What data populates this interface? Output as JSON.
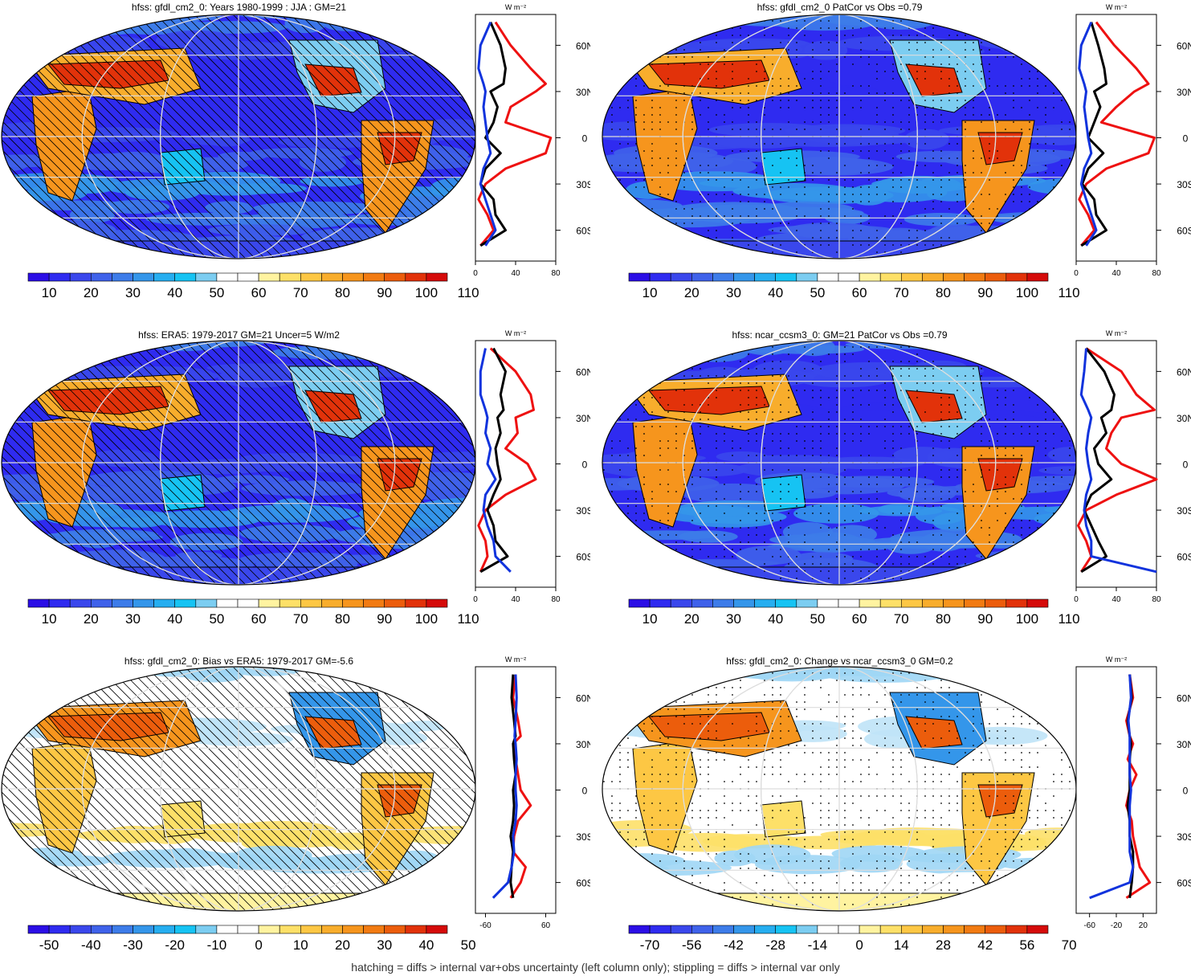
{
  "footer": "hatching = diffs > internal var+obs uncertainty (left column only); stippling = diffs > internal var only",
  "profile_unit": "W m⁻²",
  "lat_labels": [
    "60N",
    "30N",
    "0",
    "30S",
    "60S"
  ],
  "lat_values": [
    60,
    30,
    0,
    -30,
    -60
  ],
  "colors": {
    "sequential": [
      "#2b0ee6",
      "#2f2bf0",
      "#3a47ec",
      "#3f62ea",
      "#3d7ce9",
      "#3496ea",
      "#26aef0",
      "#16c3f3",
      "#7ccdf1",
      "#ffffff",
      "#ffffff",
      "#fff3a0",
      "#fde068",
      "#fdc744",
      "#f8ad2c",
      "#f6951d",
      "#f27b12",
      "#ec5d0c",
      "#e2320a",
      "#d50b0a"
    ],
    "diverging": [
      "#2b0ee6",
      "#2f2bf0",
      "#3a47ec",
      "#3f62ea",
      "#3d7ce9",
      "#3496ea",
      "#26aef0",
      "#16c3f3",
      "#7ccdf1",
      "#ffffff",
      "#ffffff",
      "#fff3a0",
      "#fde068",
      "#fdc744",
      "#f8ad2c",
      "#f6951d",
      "#f27b12",
      "#ec5d0c",
      "#e2320a",
      "#d50b0a"
    ],
    "profile_red": "#ee1111",
    "profile_blue": "#1133dd",
    "profile_black": "#000000"
  },
  "chart_data": [
    {
      "type": "heatmap",
      "title": "hfss: gfdl_cm2_0: Years 1980-1999 : JJA : GM=21",
      "colorbar_labels": [
        "10",
        "20",
        "30",
        "40",
        "50",
        "60",
        "70",
        "80",
        "90",
        "100",
        "110"
      ],
      "overlay": "hatching",
      "profile": {
        "xticks": [
          "0",
          "40",
          "80"
        ],
        "xlim": [
          0,
          80
        ],
        "lat": [
          75,
          60,
          45,
          35,
          30,
          20,
          10,
          0,
          -10,
          -20,
          -30,
          -40,
          -50,
          -60,
          -70
        ],
        "series": [
          {
            "color": "red",
            "values": [
              20,
              35,
              55,
              70,
              60,
              35,
              30,
              75,
              70,
              30,
              10,
              3,
              12,
              18,
              5
            ]
          },
          {
            "color": "black",
            "values": [
              15,
              25,
              30,
              28,
              15,
              22,
              18,
              10,
              25,
              10,
              5,
              18,
              20,
              30,
              5
            ]
          },
          {
            "color": "blue",
            "values": [
              15,
              5,
              3,
              8,
              10,
              8,
              10,
              12,
              15,
              8,
              5,
              10,
              15,
              20,
              10
            ]
          }
        ]
      }
    },
    {
      "type": "heatmap",
      "title": "hfss: gfdl_cm2_0 PatCor vs Obs =0.79",
      "colorbar_labels": [
        "10",
        "20",
        "30",
        "40",
        "50",
        "60",
        "70",
        "80",
        "90",
        "100",
        "110"
      ],
      "overlay": "stippling",
      "profile": {
        "xticks": [
          "0",
          "40",
          "80"
        ],
        "xlim": [
          0,
          80
        ],
        "lat": [
          75,
          60,
          45,
          35,
          30,
          20,
          10,
          0,
          -10,
          -20,
          -30,
          -40,
          -50,
          -60,
          -70
        ],
        "series": [
          {
            "color": "red",
            "values": [
              20,
              38,
              60,
              72,
              58,
              40,
              25,
              78,
              72,
              30,
              10,
              3,
              12,
              18,
              5
            ]
          },
          {
            "color": "black",
            "values": [
              15,
              22,
              28,
              30,
              18,
              24,
              18,
              12,
              27,
              12,
              6,
              18,
              20,
              30,
              5
            ]
          },
          {
            "color": "blue",
            "values": [
              15,
              5,
              3,
              8,
              10,
              8,
              10,
              12,
              15,
              8,
              5,
              10,
              15,
              20,
              10
            ]
          }
        ]
      }
    },
    {
      "type": "heatmap",
      "title": "hfss: ERA5: 1979-2017 GM=21 Uncer=5 W/m2",
      "colorbar_labels": [
        "10",
        "20",
        "30",
        "40",
        "50",
        "60",
        "70",
        "80",
        "90",
        "100",
        "110"
      ],
      "overlay": "hatching",
      "profile": {
        "xticks": [
          "0",
          "40",
          "80"
        ],
        "xlim": [
          0,
          80
        ],
        "lat": [
          75,
          60,
          45,
          35,
          30,
          20,
          10,
          0,
          -10,
          -20,
          -30,
          -40,
          -50,
          -60,
          -70
        ],
        "series": [
          {
            "color": "red",
            "values": [
              15,
              40,
              55,
              58,
              40,
              42,
              30,
              52,
              60,
              30,
              10,
              3,
              10,
              12,
              5
            ]
          },
          {
            "color": "black",
            "values": [
              18,
              30,
              25,
              28,
              22,
              25,
              20,
              22,
              25,
              18,
              12,
              18,
              20,
              32,
              5
            ]
          },
          {
            "color": "blue",
            "values": [
              10,
              5,
              5,
              10,
              12,
              10,
              15,
              12,
              20,
              10,
              8,
              12,
              18,
              20,
              35
            ]
          }
        ]
      }
    },
    {
      "type": "heatmap",
      "title": "hfss: ncar_ccsm3_0: GM=21 PatCor vs Obs =0.79",
      "colorbar_labels": [
        "10",
        "20",
        "30",
        "40",
        "50",
        "60",
        "70",
        "80",
        "90",
        "100",
        "110"
      ],
      "overlay": "stippling",
      "profile": {
        "xticks": [
          "0",
          "40",
          "80"
        ],
        "xlim": [
          0,
          80
        ],
        "lat": [
          75,
          60,
          45,
          35,
          30,
          20,
          10,
          0,
          -10,
          -20,
          -30,
          -40,
          -50,
          -60,
          -70
        ],
        "series": [
          {
            "color": "red",
            "values": [
              10,
              45,
              60,
              78,
              45,
              35,
              30,
              45,
              80,
              40,
              10,
              2,
              10,
              15,
              5
            ]
          },
          {
            "color": "black",
            "values": [
              10,
              28,
              38,
              35,
              25,
              30,
              18,
              22,
              35,
              15,
              8,
              15,
              22,
              30,
              5
            ]
          },
          {
            "color": "blue",
            "values": [
              10,
              8,
              5,
              12,
              15,
              12,
              10,
              12,
              15,
              10,
              8,
              10,
              15,
              15,
              80
            ]
          }
        ]
      }
    },
    {
      "type": "heatmap",
      "title": "hfss: gfdl_cm2_0: Bias vs ERA5: 1979-2017 GM=-5.6",
      "colorbar_labels": [
        "-50",
        "-40",
        "-30",
        "-20",
        "-10",
        "0",
        "10",
        "20",
        "30",
        "40",
        "50"
      ],
      "overlay": "hatching",
      "profile": {
        "xticks": [
          "-60",
          "60"
        ],
        "xlim": [
          -80,
          80
        ],
        "lat": [
          75,
          60,
          45,
          35,
          30,
          20,
          10,
          0,
          -10,
          -20,
          -30,
          -40,
          -50,
          -60,
          -70
        ],
        "series": [
          {
            "color": "red",
            "values": [
              0,
              -5,
              5,
              10,
              -5,
              0,
              5,
              10,
              30,
              5,
              -3,
              -5,
              20,
              10,
              -10
            ]
          },
          {
            "color": "black",
            "values": [
              -5,
              -8,
              -3,
              0,
              -5,
              -3,
              0,
              -5,
              -3,
              -5,
              -10,
              -5,
              -8,
              -10,
              -5
            ]
          },
          {
            "color": "blue",
            "values": [
              0,
              2,
              0,
              -2,
              0,
              2,
              0,
              0,
              2,
              0,
              -5,
              -3,
              -8,
              -15,
              -45
            ]
          }
        ]
      }
    },
    {
      "type": "heatmap",
      "title": "hfss: gfdl_cm2_0: Change vs ncar_ccsm3_0 GM=0.2",
      "colorbar_labels": [
        "-70",
        "-56",
        "-42",
        "-28",
        "-14",
        "0",
        "14",
        "28",
        "42",
        "56",
        "70"
      ],
      "overlay": "stippling",
      "profile": {
        "xticks": [
          "-60",
          "-20",
          "20"
        ],
        "xlim": [
          -80,
          40
        ],
        "lat": [
          75,
          60,
          45,
          35,
          30,
          20,
          10,
          0,
          -10,
          -20,
          -30,
          -40,
          -50,
          -60,
          -70
        ],
        "series": [
          {
            "color": "red",
            "values": [
              0,
              5,
              -5,
              0,
              5,
              -3,
              10,
              0,
              -5,
              3,
              5,
              10,
              15,
              30,
              -5
            ]
          },
          {
            "color": "black",
            "values": [
              0,
              3,
              -3,
              0,
              2,
              0,
              0,
              0,
              -3,
              0,
              0,
              5,
              5,
              3,
              0
            ]
          },
          {
            "color": "blue",
            "values": [
              0,
              2,
              -2,
              0,
              0,
              0,
              0,
              2,
              0,
              0,
              0,
              0,
              5,
              0,
              -60
            ]
          }
        ]
      }
    }
  ]
}
